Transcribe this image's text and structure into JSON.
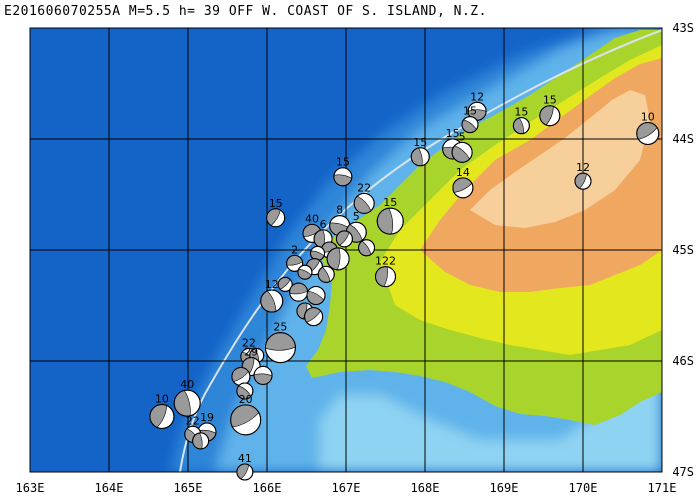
{
  "title": "E201606070255A M=5.5 h= 39 OFF W. COAST OF S. ISLAND, N.Z.",
  "map": {
    "lon_range": [
      163,
      171
    ],
    "lat_range": [
      -47,
      -43
    ],
    "x_ticks": [
      "163E",
      "164E",
      "165E",
      "166E",
      "167E",
      "168E",
      "169E",
      "170E",
      "171E"
    ],
    "y_ticks": [
      "43S",
      "44S",
      "45S",
      "46S",
      "47S"
    ],
    "colors": {
      "deep_ocean": "#1464c8",
      "mid_ocean": "#2f86d8",
      "shelf": "#5fb3ea",
      "shallow": "#8fd3f3",
      "lowland": "#a9d42b",
      "midland": "#e3e81e",
      "highland": "#f0a860",
      "peaks": "#f7cf9b",
      "grid": "#000000",
      "trench": "#d7e3ee"
    }
  },
  "events": [
    {
      "lon": 168.66,
      "lat": -43.75,
      "depth": "12",
      "r": 9
    },
    {
      "lon": 168.57,
      "lat": -43.87,
      "depth": "15",
      "r": 8
    },
    {
      "lon": 169.22,
      "lat": -43.88,
      "depth": "15",
      "r": 8
    },
    {
      "lon": 169.58,
      "lat": -43.79,
      "depth": "15",
      "r": 10
    },
    {
      "lon": 170.82,
      "lat": -43.95,
      "depth": "10",
      "r": 11
    },
    {
      "lon": 168.35,
      "lat": -44.09,
      "depth": "15",
      "r": 10
    },
    {
      "lon": 168.47,
      "lat": -44.12,
      "depth": "5",
      "r": 10
    },
    {
      "lon": 167.94,
      "lat": -44.16,
      "depth": "15",
      "r": 9
    },
    {
      "lon": 170.0,
      "lat": -44.38,
      "depth": "12",
      "r": 8
    },
    {
      "lon": 168.48,
      "lat": -44.44,
      "depth": "14",
      "r": 10
    },
    {
      "lon": 166.96,
      "lat": -44.34,
      "depth": "15",
      "r": 9
    },
    {
      "lon": 167.23,
      "lat": -44.58,
      "depth": "22",
      "r": 10
    },
    {
      "lon": 167.56,
      "lat": -44.74,
      "depth": "15",
      "r": 13
    },
    {
      "lon": 166.11,
      "lat": -44.71,
      "depth": "15",
      "r": 9
    },
    {
      "lon": 166.57,
      "lat": -44.85,
      "depth": "40",
      "r": 9
    },
    {
      "lon": 166.92,
      "lat": -44.78,
      "depth": "8",
      "r": 10
    },
    {
      "lon": 167.13,
      "lat": -44.84,
      "depth": "5",
      "r": 10
    },
    {
      "lon": 166.71,
      "lat": -44.9,
      "depth": "6",
      "r": 9
    },
    {
      "lon": 166.98,
      "lat": -44.9,
      "depth": "",
      "r": 8
    },
    {
      "lon": 166.79,
      "lat": -45.0,
      "depth": "",
      "r": 8
    },
    {
      "lon": 166.64,
      "lat": -45.03,
      "depth": "",
      "r": 7
    },
    {
      "lon": 167.26,
      "lat": -44.98,
      "depth": "",
      "r": 8
    },
    {
      "lon": 166.9,
      "lat": -45.08,
      "depth": "",
      "r": 11
    },
    {
      "lon": 166.6,
      "lat": -45.15,
      "depth": "",
      "r": 8
    },
    {
      "lon": 166.35,
      "lat": -45.12,
      "depth": "2",
      "r": 8
    },
    {
      "lon": 166.48,
      "lat": -45.2,
      "depth": "",
      "r": 7
    },
    {
      "lon": 166.75,
      "lat": -45.22,
      "depth": "",
      "r": 8
    },
    {
      "lon": 167.5,
      "lat": -45.24,
      "depth": "122",
      "r": 10
    },
    {
      "lon": 166.23,
      "lat": -45.31,
      "depth": "",
      "r": 7
    },
    {
      "lon": 166.4,
      "lat": -45.38,
      "depth": "",
      "r": 9
    },
    {
      "lon": 166.62,
      "lat": -45.41,
      "depth": "",
      "r": 9
    },
    {
      "lon": 166.06,
      "lat": -45.46,
      "depth": "12",
      "r": 11
    },
    {
      "lon": 166.48,
      "lat": -45.55,
      "depth": "",
      "r": 8
    },
    {
      "lon": 166.59,
      "lat": -45.6,
      "depth": "",
      "r": 9
    },
    {
      "lon": 166.17,
      "lat": -45.88,
      "depth": "25",
      "r": 15
    },
    {
      "lon": 165.77,
      "lat": -45.96,
      "depth": "22",
      "r": 8
    },
    {
      "lon": 165.87,
      "lat": -45.95,
      "depth": "",
      "r": 7
    },
    {
      "lon": 165.8,
      "lat": -46.05,
      "depth": "29",
      "r": 9
    },
    {
      "lon": 165.67,
      "lat": -46.14,
      "depth": "",
      "r": 9
    },
    {
      "lon": 165.95,
      "lat": -46.13,
      "depth": "",
      "r": 9
    },
    {
      "lon": 165.72,
      "lat": -46.27,
      "depth": "",
      "r": 8
    },
    {
      "lon": 164.99,
      "lat": -46.38,
      "depth": "40",
      "r": 13
    },
    {
      "lon": 164.67,
      "lat": -46.5,
      "depth": "10",
      "r": 12
    },
    {
      "lon": 165.73,
      "lat": -46.53,
      "depth": "20",
      "r": 15
    },
    {
      "lon": 165.24,
      "lat": -46.64,
      "depth": "19",
      "r": 9
    },
    {
      "lon": 165.06,
      "lat": -46.66,
      "depth": "22",
      "r": 8
    },
    {
      "lon": 165.16,
      "lat": -46.72,
      "depth": "",
      "r": 8
    },
    {
      "lon": 165.72,
      "lat": -47.0,
      "depth": "41",
      "r": 8
    }
  ]
}
